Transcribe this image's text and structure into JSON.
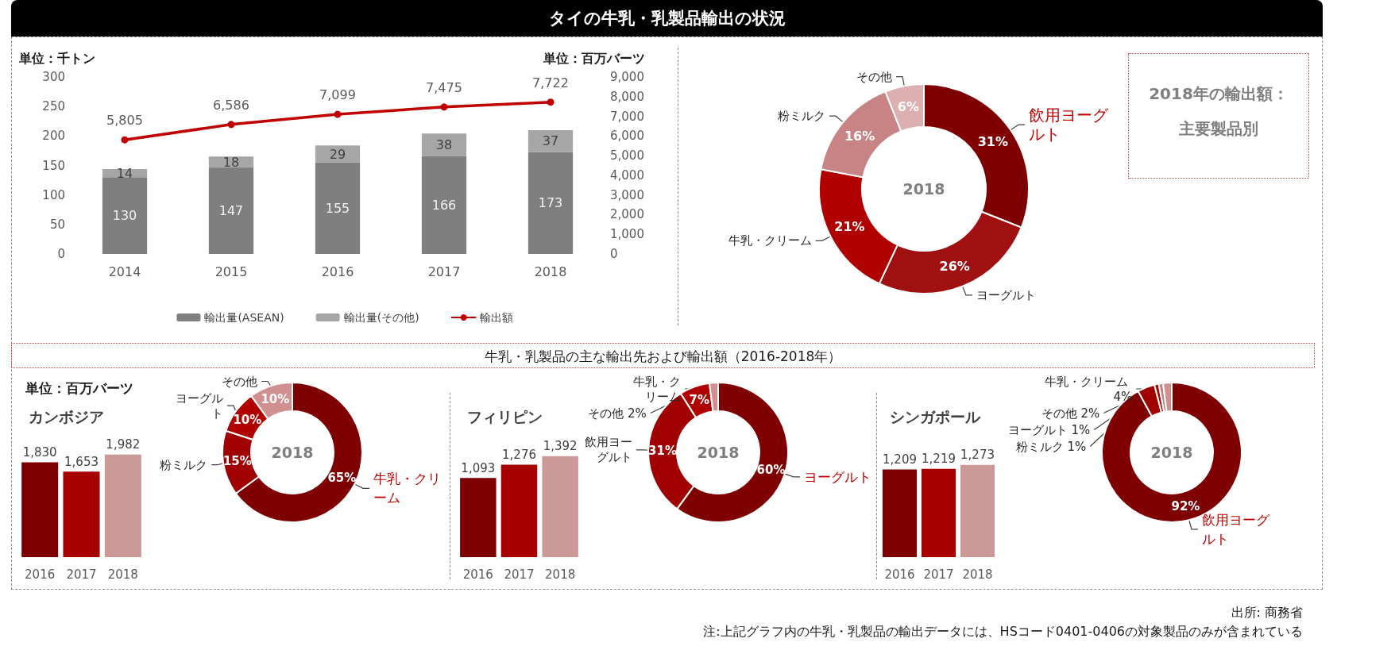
{
  "chart_data": [
    {
      "type": "bar",
      "title": "タイの牛乳・乳製品輸出の状況",
      "ylabel": "単位：千トン",
      "y2label": "単位：百万バーツ",
      "categories": [
        "2014",
        "2015",
        "2016",
        "2017",
        "2018"
      ],
      "stacked": true,
      "data_labels": true,
      "legend": "bottom",
      "marker": "circle",
      "ylim": [
        0,
        300
      ],
      "yticks": [
        0,
        50,
        100,
        150,
        200,
        250,
        300
      ],
      "y2lim": [
        0,
        9000
      ],
      "y2ticks": [
        0,
        {
          "value": 1000,
          "label": "1,000"
        },
        {
          "value": 2000,
          "label": "2,000"
        },
        {
          "value": 3000,
          "label": "3,000"
        },
        {
          "value": 4000,
          "label": "4,000"
        },
        {
          "value": 5000,
          "label": "5,000"
        },
        {
          "value": 6000,
          "label": "6,000"
        },
        {
          "value": 7000,
          "label": "7,000"
        },
        {
          "value": 8000,
          "label": "8,000"
        },
        {
          "value": 9000,
          "label": "9,000"
        }
      ],
      "series": [
        {
          "name": "輸出量(ASEAN)",
          "color": "#7f7f7f",
          "values": [
            130,
            147,
            155,
            166,
            173
          ]
        },
        {
          "name": "輸出量(その他)",
          "color": "#a6a6a6",
          "values": [
            14,
            18,
            29,
            38,
            37
          ]
        },
        {
          "name": "輸出額",
          "type": "line",
          "axis": "y2",
          "color": "#c00000",
          "values": [
            5805,
            6586,
            7099,
            7475,
            7722
          ],
          "value_labels": [
            "5,805",
            "6,586",
            "7,099",
            "7,475",
            "7,722"
          ]
        }
      ]
    },
    {
      "type": "donut",
      "title": "2018年の輸出額：主要製品別",
      "categories": [
        "飲用ヨーグルト",
        "ヨーグルト",
        "牛乳・クリーム",
        "粉ミルク",
        "その他"
      ],
      "values": [
        31,
        26,
        21,
        16,
        6
      ],
      "colors": [
        "#7f0000",
        "#a01010",
        "#b00000",
        "#c88484",
        "#dcb0b0"
      ],
      "value_labels": [
        "31%",
        "26%",
        "21%",
        "16%",
        "6%"
      ],
      "annotations": [
        "2018"
      ]
    },
    {
      "type": "bar",
      "title": "カンボジア",
      "ylabel": "単位：百万バーツ",
      "categories": [
        "2016",
        "2017",
        "2018"
      ],
      "values": [
        1830,
        1653,
        1982
      ],
      "value_labels": [
        "1,830",
        "1,653",
        "1,982"
      ],
      "colors": [
        "#7f0000",
        "#a80000",
        "#cc9999"
      ]
    },
    {
      "type": "donut",
      "categories": [
        "牛乳・クリーム",
        "粉ミルク",
        "ヨーグルト",
        "その他"
      ],
      "values": [
        65,
        15,
        10,
        10
      ],
      "colors": [
        "#7f0000",
        "#a00000",
        "#b00000",
        "#d09090"
      ],
      "value_labels": [
        "65%",
        "15%",
        "10%",
        "10%"
      ],
      "annotations": [
        "2018"
      ]
    },
    {
      "type": "bar",
      "title": "フィリピン",
      "categories": [
        "2016",
        "2017",
        "2018"
      ],
      "values": [
        1093,
        1276,
        1392
      ],
      "value_labels": [
        "1,093",
        "1,276",
        "1,392"
      ],
      "colors": [
        "#7f0000",
        "#a80000",
        "#cc9999"
      ]
    },
    {
      "type": "donut",
      "subtitle": "牛乳・乳製品の主な輸出先および輸出額（2016-2018年）",
      "categories": [
        "ヨーグルト",
        "飲用ヨーグルト",
        "牛乳・クリーム",
        "その他"
      ],
      "values": [
        60,
        31,
        7,
        2
      ],
      "colors": [
        "#7f0000",
        "#a00000",
        "#b00000",
        "#d09090"
      ],
      "value_labels": [
        "60%",
        "31%",
        "7%",
        "2%"
      ],
      "annotations": [
        "2018"
      ]
    },
    {
      "type": "bar",
      "title": "シンガポール",
      "categories": [
        "2016",
        "2017",
        "2018"
      ],
      "values": [
        1209,
        1219,
        1273
      ],
      "value_labels": [
        "1,209",
        "1,219",
        "1,273"
      ],
      "colors": [
        "#7f0000",
        "#a80000",
        "#cc9999"
      ]
    },
    {
      "type": "donut",
      "categories": [
        "飲用ヨーグルト",
        "牛乳・クリーム",
        "粉ミルク",
        "ヨーグルト",
        "その他"
      ],
      "values": [
        92,
        4,
        1,
        1,
        2
      ],
      "colors": [
        "#7f0000",
        "#a00000",
        "#b00000",
        "#c08080",
        "#d09090"
      ],
      "value_labels": [
        "92%",
        "4%",
        "1%",
        "1%",
        "2%"
      ],
      "annotations": [
        "2018",
        "出所: 商務省",
        "注:上記グラフ内の牛乳・乳製品の輸出データには、HSコード0401-0406の対象製品のみが含まれている"
      ]
    }
  ]
}
